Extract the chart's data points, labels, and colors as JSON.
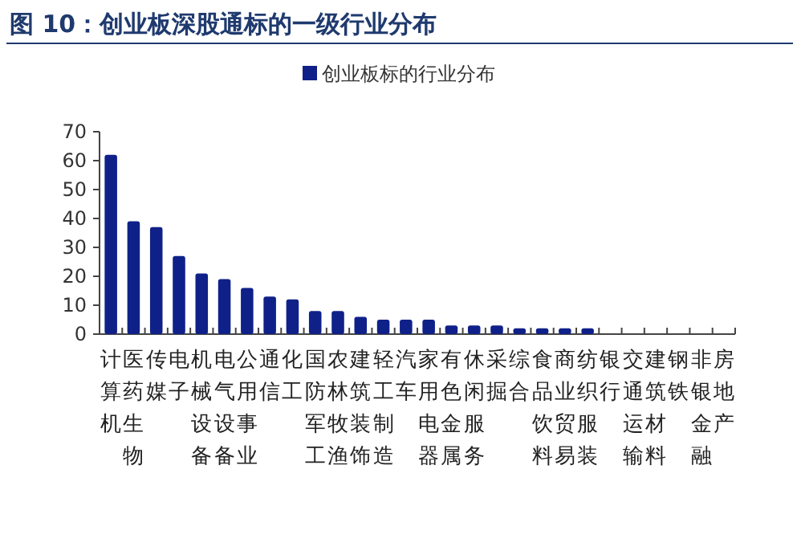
{
  "chart_data": {
    "type": "bar",
    "title": "图 10：创业板深股通标的一级行业分布",
    "categories": [
      "计算机",
      "医药生物",
      "传媒",
      "电子",
      "机械设备",
      "电气设备",
      "公用事业",
      "通信",
      "化工",
      "国防军工",
      "农林牧渔",
      "建筑装饰",
      "轻工制造",
      "汽车",
      "家用电器",
      "有色金属",
      "休闲服务",
      "采掘",
      "综合",
      "食品饮料",
      "商业贸易",
      "纺织服装",
      "银行",
      "交通运输",
      "建筑材料",
      "钢铁",
      "非银金融",
      "房地产"
    ],
    "series": [
      {
        "name": "创业板标的行业分布",
        "color": "#0f2189",
        "values": [
          62,
          39,
          37,
          27,
          21,
          19,
          16,
          13,
          12,
          8,
          8,
          6,
          5,
          5,
          5,
          3,
          3,
          3,
          2,
          2,
          2,
          2,
          0,
          0,
          0,
          0,
          0,
          0
        ]
      }
    ],
    "ylim": [
      0,
      70
    ],
    "yticks": [
      0,
      10,
      20,
      30,
      40,
      50,
      60,
      70
    ],
    "legend": "top",
    "grid": false
  }
}
